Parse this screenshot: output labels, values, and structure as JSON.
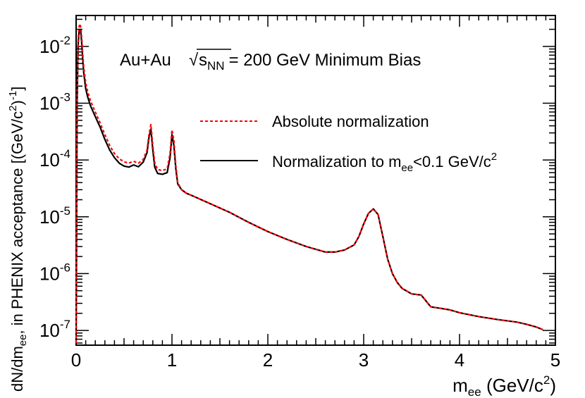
{
  "chart_data": {
    "type": "line",
    "title": "Au+Au",
    "annotation": {
      "system": "Au+Au",
      "sqrt_symbol": "√",
      "s_label": "s",
      "s_subscript": "NN",
      "rest": "= 200 GeV Minimum Bias"
    },
    "xlabel": {
      "main": "m",
      "sub": "ee",
      "unit_open": " (GeV/c",
      "unit_sup": "2",
      "unit_close": ")"
    },
    "ylabel": {
      "prefix": "dN/dm",
      "sub": "ee",
      "middle": ", in PHENIX acceptance [(GeV/c",
      "sup1": "2",
      "close1": ")",
      "sup2": "-1",
      "close2": "]"
    },
    "xlim": [
      0,
      5
    ],
    "ylim": [
      5.5e-08,
      0.035
    ],
    "yscale": "log",
    "x_ticks": [
      {
        "value": 0,
        "label": "0"
      },
      {
        "value": 1,
        "label": "1"
      },
      {
        "value": 2,
        "label": "2"
      },
      {
        "value": 3,
        "label": "3"
      },
      {
        "value": 4,
        "label": "4"
      },
      {
        "value": 5,
        "label": "5"
      }
    ],
    "y_ticks": [
      {
        "value": 1e-07,
        "base": "10",
        "exp": "-7"
      },
      {
        "value": 1e-06,
        "base": "10",
        "exp": "-6"
      },
      {
        "value": 1e-05,
        "base": "10",
        "exp": "-5"
      },
      {
        "value": 0.0001,
        "base": "10",
        "exp": "-4"
      },
      {
        "value": 0.001,
        "base": "10",
        "exp": "-3"
      },
      {
        "value": 0.01,
        "base": "10",
        "exp": "-2"
      }
    ],
    "legend": {
      "position": "center-right",
      "entries": [
        {
          "label": "Absolute normalization",
          "color": "#ff0000",
          "style": "dashed"
        },
        {
          "label_main": "Normalization to m",
          "label_sub": "ee",
          "label_rest": "<0.1 GeV/c",
          "label_sup": "2",
          "color": "#000000",
          "style": "solid"
        }
      ]
    },
    "series": [
      {
        "name": "Absolute normalization",
        "color": "#ff0000",
        "style": "dashed",
        "x": [
          0.0,
          0.005,
          0.01,
          0.02,
          0.03,
          0.04,
          0.05,
          0.06,
          0.07,
          0.08,
          0.1,
          0.12,
          0.15,
          0.2,
          0.25,
          0.3,
          0.35,
          0.4,
          0.45,
          0.5,
          0.55,
          0.6,
          0.65,
          0.7,
          0.74,
          0.76,
          0.78,
          0.8,
          0.82,
          0.85,
          0.9,
          0.95,
          0.98,
          1.0,
          1.02,
          1.04,
          1.06,
          1.1,
          1.15,
          1.2,
          1.4,
          1.6,
          1.8,
          2.0,
          2.2,
          2.4,
          2.6,
          2.7,
          2.8,
          2.9,
          2.95,
          3.0,
          3.05,
          3.1,
          3.15,
          3.2,
          3.25,
          3.3,
          3.35,
          3.4,
          3.5,
          3.6,
          3.65,
          3.7,
          3.8,
          3.9,
          4.0,
          4.2,
          4.4,
          4.6,
          4.7,
          4.8,
          4.87
        ],
        "y": [
          6e-08,
          5e-06,
          0.001,
          0.012,
          0.022,
          0.025,
          0.021,
          0.013,
          0.007,
          0.0042,
          0.0023,
          0.0016,
          0.0011,
          0.0007,
          0.00045,
          0.00028,
          0.00018,
          0.00013,
          0.000105,
          9.3e-05,
          8.8e-05,
          9.5e-05,
          8.8e-05,
          0.000102,
          0.00015,
          0.00028,
          0.00042,
          0.00018,
          9e-05,
          6.8e-05,
          6.5e-05,
          7e-05,
          0.00013,
          0.00034,
          0.00022,
          8e-05,
          4e-05,
          3e-05,
          2.6e-05,
          2.4e-05,
          1.7e-05,
          1.2e-05,
          8e-06,
          5.5e-06,
          4e-06,
          3e-06,
          2.4e-06,
          2.4e-06,
          2.6e-06,
          3.2e-06,
          4.5e-06,
          7.5e-06,
          1.15e-05,
          1.38e-05,
          1.1e-05,
          4.5e-06,
          1.8e-06,
          1e-06,
          7e-07,
          5.5e-07,
          4.4e-07,
          4.2e-07,
          3.3e-07,
          2.6e-07,
          2.45e-07,
          2.3e-07,
          2.05e-07,
          1.75e-07,
          1.55e-07,
          1.4e-07,
          1.28e-07,
          1.15e-07,
          1.03e-07
        ]
      },
      {
        "name": "Normalization to m_ee<0.1 GeV/c^2",
        "color": "#000000",
        "style": "solid",
        "x": [
          0.0,
          0.005,
          0.01,
          0.02,
          0.03,
          0.04,
          0.05,
          0.06,
          0.07,
          0.08,
          0.1,
          0.12,
          0.15,
          0.2,
          0.25,
          0.3,
          0.35,
          0.4,
          0.45,
          0.5,
          0.55,
          0.6,
          0.65,
          0.7,
          0.74,
          0.76,
          0.78,
          0.8,
          0.82,
          0.85,
          0.9,
          0.95,
          0.98,
          1.0,
          1.02,
          1.04,
          1.06,
          1.1,
          1.15,
          1.2,
          1.4,
          1.6,
          1.8,
          2.0,
          2.2,
          2.4,
          2.6,
          2.7,
          2.8,
          2.9,
          2.95,
          3.0,
          3.05,
          3.1,
          3.15,
          3.2,
          3.25,
          3.3,
          3.35,
          3.4,
          3.5,
          3.6,
          3.65,
          3.7,
          3.8,
          3.9,
          4.0,
          4.2,
          4.4,
          4.6,
          4.7,
          4.8,
          4.87
        ],
        "y": [
          6e-08,
          4e-06,
          0.0008,
          0.01,
          0.018,
          0.02,
          0.017,
          0.0105,
          0.0055,
          0.0034,
          0.0018,
          0.0013,
          0.0009,
          0.00058,
          0.00038,
          0.00023,
          0.00015,
          0.00011,
          8.8e-05,
          7.8e-05,
          7.5e-05,
          8.2e-05,
          7.6e-05,
          9.2e-05,
          0.000135,
          0.00025,
          0.00035,
          0.00015,
          7.5e-05,
          5.8e-05,
          5.6e-05,
          6e-05,
          0.00011,
          0.00028,
          0.00018,
          7e-05,
          3.8e-05,
          3e-05,
          2.6e-05,
          2.4e-05,
          1.7e-05,
          1.2e-05,
          8e-06,
          5.5e-06,
          4e-06,
          3e-06,
          2.4e-06,
          2.4e-06,
          2.6e-06,
          3.2e-06,
          4.5e-06,
          7.5e-06,
          1.15e-05,
          1.38e-05,
          1.1e-05,
          4.5e-06,
          1.8e-06,
          1e-06,
          7e-07,
          5.5e-07,
          4.4e-07,
          4.2e-07,
          3.3e-07,
          2.6e-07,
          2.45e-07,
          2.3e-07,
          2.05e-07,
          1.75e-07,
          1.55e-07,
          1.4e-07,
          1.28e-07,
          1.15e-07,
          1.03e-07
        ]
      }
    ]
  }
}
